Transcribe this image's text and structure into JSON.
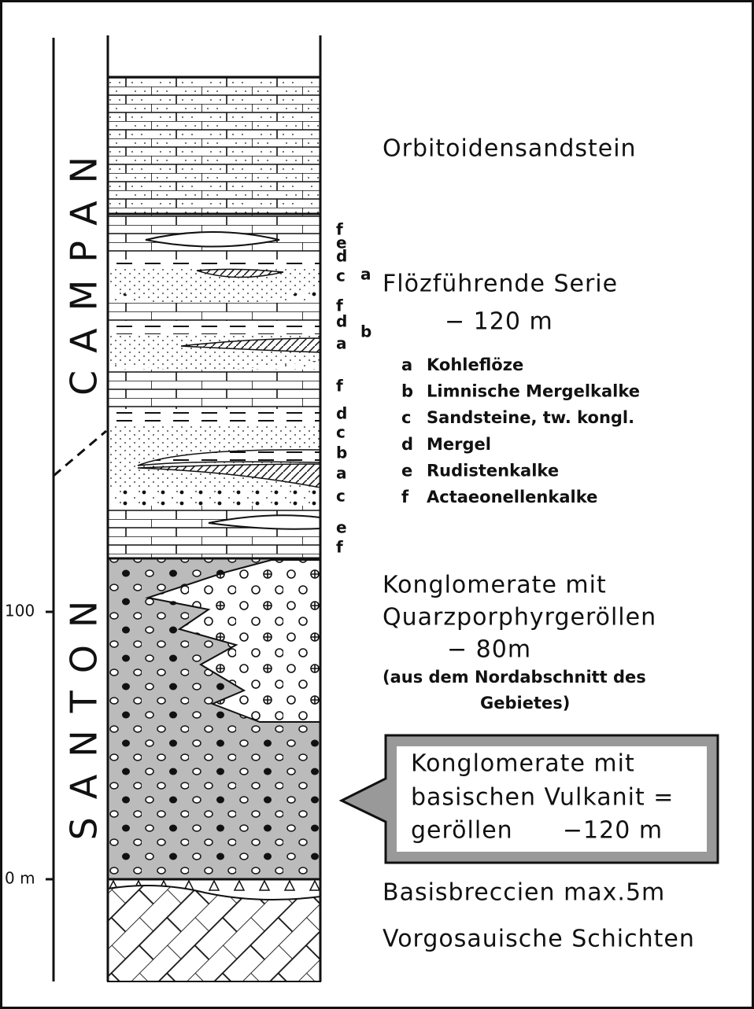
{
  "stages": [
    "CAMPAN",
    "SANTON"
  ],
  "scale": [
    "100",
    "0 m"
  ],
  "layer_letters": [
    "f",
    "e",
    "d",
    "c",
    "f",
    "d",
    "a",
    "f",
    "d",
    "c",
    "b",
    "a",
    "c",
    "e",
    "f"
  ],
  "side_letters": [
    "a",
    "b"
  ],
  "units": {
    "orbitoid": "Orbitoidensandstein",
    "floz_title": "Flözführende Serie",
    "floz_thickness": "− 120 m",
    "legend": [
      {
        "letter": "a",
        "text": "Kohleflöze"
      },
      {
        "letter": "b",
        "text": "Limnische Mergelkalke"
      },
      {
        "letter": "c",
        "text": "Sandsteine, tw. kongl."
      },
      {
        "letter": "d",
        "text": "Mergel"
      },
      {
        "letter": "e",
        "text": "Rudistenkalke"
      },
      {
        "letter": "f",
        "text": "Actaeonellenkalke"
      }
    ],
    "quarz": [
      "Konglomerate mit",
      "Quarzporphyrgeröllen",
      "− 80m",
      "(aus dem Nordabschnitt des",
      "Gebietes)"
    ],
    "vulkanit": [
      "Konglomerate mit",
      "basischen Vulkanit =",
      "geröllen      −120 m"
    ],
    "breccia": "Basisbreccien  max.5m",
    "base": "Vorgosauische Schichten"
  }
}
